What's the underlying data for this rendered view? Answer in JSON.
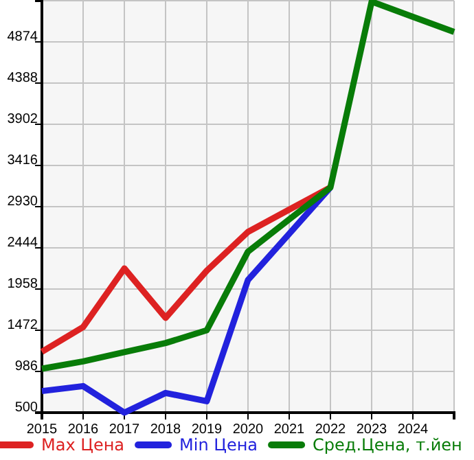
{
  "chart_data": {
    "type": "line",
    "x": [
      2015,
      2016,
      2017,
      2018,
      2019,
      2020,
      2021,
      2022,
      2023,
      2024,
      2025
    ],
    "series": [
      {
        "name": "Max Цена",
        "color": "#dd2222",
        "values": [
          1218,
          1509,
          2201,
          1618,
          2175,
          2633,
          2895,
          3157,
          null,
          null,
          null
        ]
      },
      {
        "name": "Min Цена",
        "color": "#2222dd",
        "values": [
          754,
          813,
          500,
          732,
          635,
          2066,
          2610,
          3157,
          null,
          null,
          null
        ]
      },
      {
        "name": "Сред.Цена, т.йен",
        "color": "#087c08",
        "values": [
          1018,
          1105,
          1213,
          1321,
          1472,
          2400,
          2780,
          3157,
          5349,
          5170,
          4992
        ]
      }
    ],
    "xlim": [
      2015,
      2025
    ],
    "xticks": [
      2015,
      2016,
      2017,
      2018,
      2019,
      2020,
      2021,
      2022,
      2023,
      2024,
      {
        "value": 2025,
        "label": null
      }
    ],
    "ylim": [
      500,
      5360
    ],
    "yticks": [
      500,
      986,
      1472,
      1958,
      2444,
      2930,
      3416,
      3902,
      4388,
      4874,
      {
        "value": 5360,
        "label": null
      }
    ],
    "grid": true,
    "legend": "bottom",
    "marker": "none",
    "line_style": "solid"
  }
}
